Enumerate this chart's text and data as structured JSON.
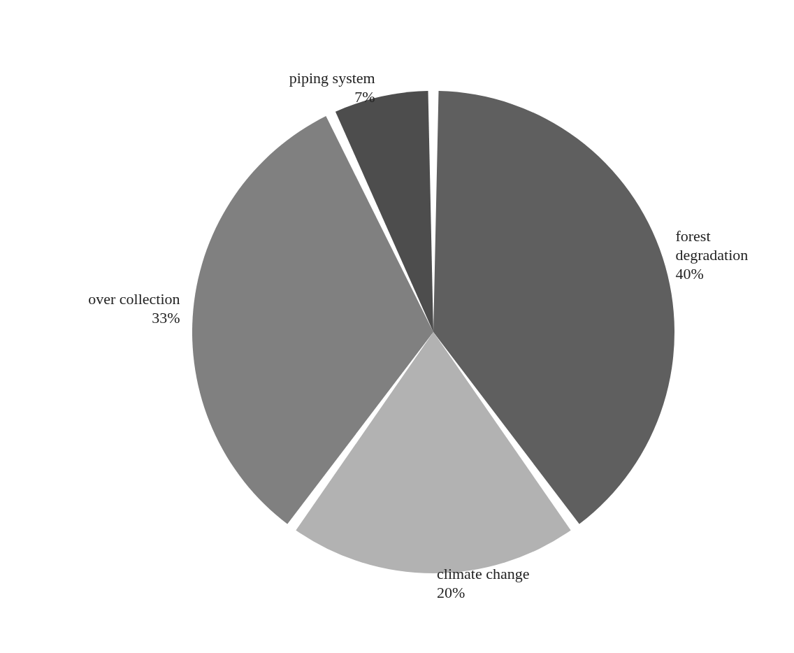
{
  "chart_data": {
    "type": "pie",
    "categories": [
      "forest degradation",
      "climate change",
      "over collection",
      "piping system"
    ],
    "values": [
      40,
      20,
      33,
      7
    ],
    "value_labels": [
      "40%",
      "20%",
      "33%",
      "7%"
    ],
    "colors": [
      "#5f5f5f",
      "#b2b2b2",
      "#808080",
      "#4d4d4d"
    ],
    "legend": false
  }
}
